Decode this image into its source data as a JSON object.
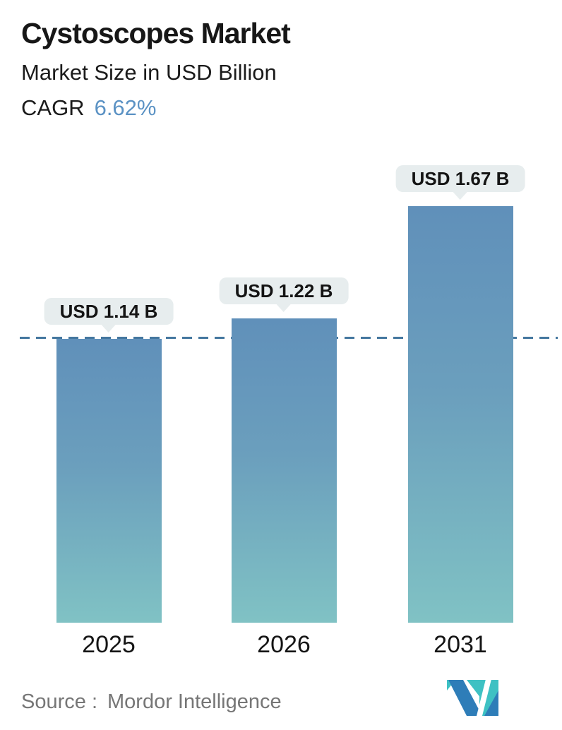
{
  "header": {
    "title": "Cystoscopes Market",
    "subtitle": "Market Size in USD Billion",
    "cagr_label": "CAGR",
    "cagr_value": "6.62%"
  },
  "chart_data": {
    "type": "bar",
    "title": "Cystoscopes Market",
    "subtitle": "Market Size in USD Billion",
    "unit": "USD Billion",
    "cagr_percent": 6.62,
    "categories": [
      "2025",
      "2026",
      "2031"
    ],
    "values": [
      1.14,
      1.22,
      1.67
    ],
    "bar_labels": [
      "USD 1.14 B",
      "USD 1.22 B",
      "USD 1.67 B"
    ],
    "reference_line": {
      "style": "dashed",
      "value": 1.14
    },
    "ylim": [
      0,
      1.8
    ],
    "grid": false,
    "legend": false,
    "colors": {
      "bar_gradient_top": "#6090ba",
      "bar_gradient_bottom": "#80c2c4",
      "callout_bg": "#e7edee",
      "dashed_line": "#44779f",
      "cagr_value": "#5b92c4"
    }
  },
  "footer": {
    "source_label": "Source :",
    "source_value": "Mordor Intelligence",
    "logo": "mordor-intelligence-logo"
  }
}
